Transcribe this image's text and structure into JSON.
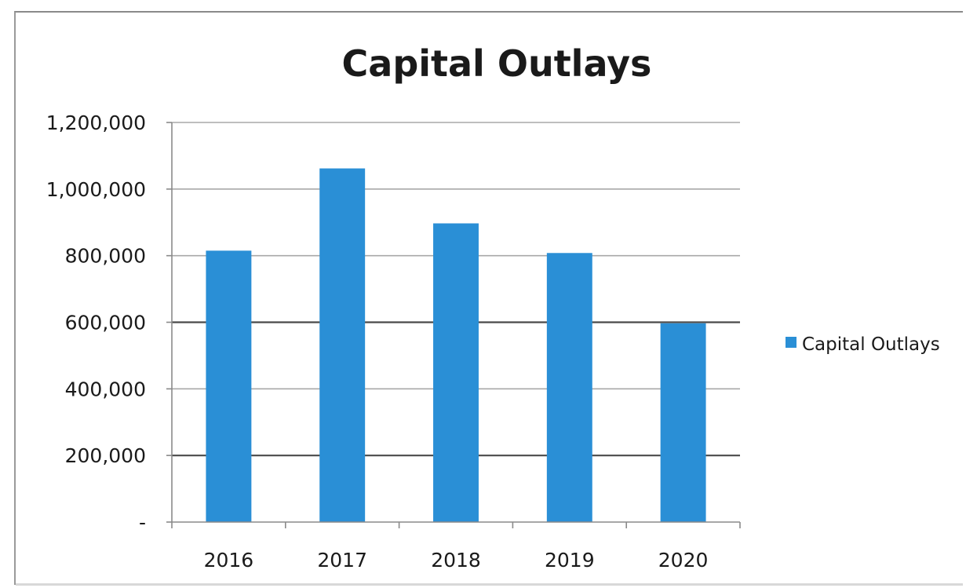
{
  "chart_data": {
    "type": "bar",
    "title": "Capital Outlays",
    "categories": [
      "2016",
      "2017",
      "2018",
      "2019",
      "2020"
    ],
    "series": [
      {
        "name": "Capital Outlays",
        "values": [
          815000,
          1062000,
          897000,
          808000,
          597000
        ],
        "color": "#2a8fd6"
      }
    ],
    "ylim": [
      0,
      1200000
    ],
    "yticks": [
      0,
      200000,
      400000,
      600000,
      800000,
      1000000,
      1200000
    ],
    "ytick_labels": [
      "-",
      "200,000",
      "400,000",
      "600,000",
      "800,000",
      "1,000,000",
      "1,200,000"
    ],
    "grid": true,
    "legend": "right",
    "xlabel": "",
    "ylabel": ""
  }
}
